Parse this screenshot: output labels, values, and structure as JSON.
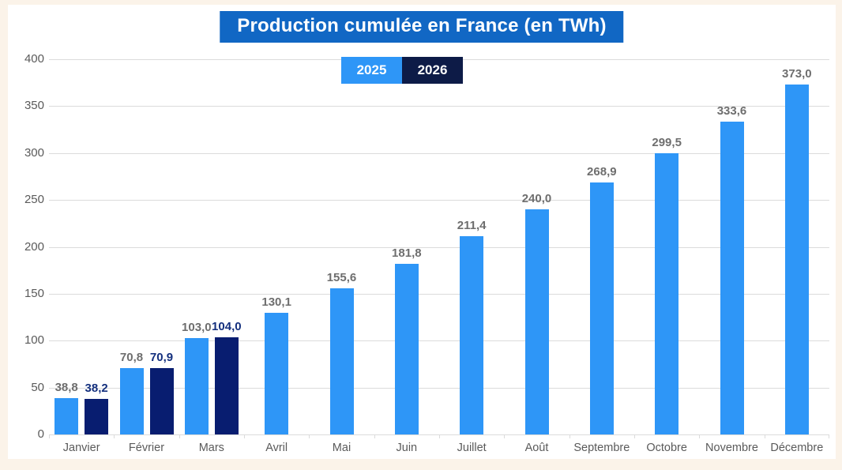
{
  "colors": {
    "page_bg": "#FBF3E9",
    "card_bg": "#FFFFFF",
    "title_bg": "#1167C4",
    "title_text": "#FFFFFF",
    "grid": "#DBDBDB",
    "axis_text": "#5A5A5A",
    "series_2025": "#2E96F7",
    "series_2026_bar": "#081D70",
    "series_2026_legend": "#0D1B47",
    "label_2025": "#6E6E6E",
    "label_2026": "#14307E"
  },
  "chart_data": {
    "type": "bar",
    "title": "Production cumulée en France (en TWh)",
    "categories": [
      "Janvier",
      "Février",
      "Mars",
      "Avril",
      "Mai",
      "Juin",
      "Juillet",
      "Août",
      "Septembre",
      "Octobre",
      "Novembre",
      "Décembre"
    ],
    "series": [
      {
        "name": "2025",
        "values": [
          38.8,
          70.8,
          103.0,
          130.1,
          155.6,
          181.8,
          211.4,
          240.0,
          268.9,
          299.5,
          333.6,
          373.0
        ],
        "labels": [
          "38,8",
          "70,8",
          "103,0",
          "130,1",
          "155,6",
          "181,8",
          "211,4",
          "240,0",
          "268,9",
          "299,5",
          "333,6",
          "373,0"
        ]
      },
      {
        "name": "2026",
        "values": [
          38.2,
          70.9,
          104.0,
          null,
          null,
          null,
          null,
          null,
          null,
          null,
          null,
          null
        ],
        "labels": [
          "38,2",
          "70,9",
          "104,0",
          null,
          null,
          null,
          null,
          null,
          null,
          null,
          null,
          null
        ]
      }
    ],
    "ylim": [
      0,
      400
    ],
    "ytick_step": 50,
    "yticks": [
      "0",
      "50",
      "100",
      "150",
      "200",
      "250",
      "300",
      "350",
      "400"
    ],
    "grid": true,
    "legend_position": "top-center",
    "xlabel": "",
    "ylabel": ""
  }
}
